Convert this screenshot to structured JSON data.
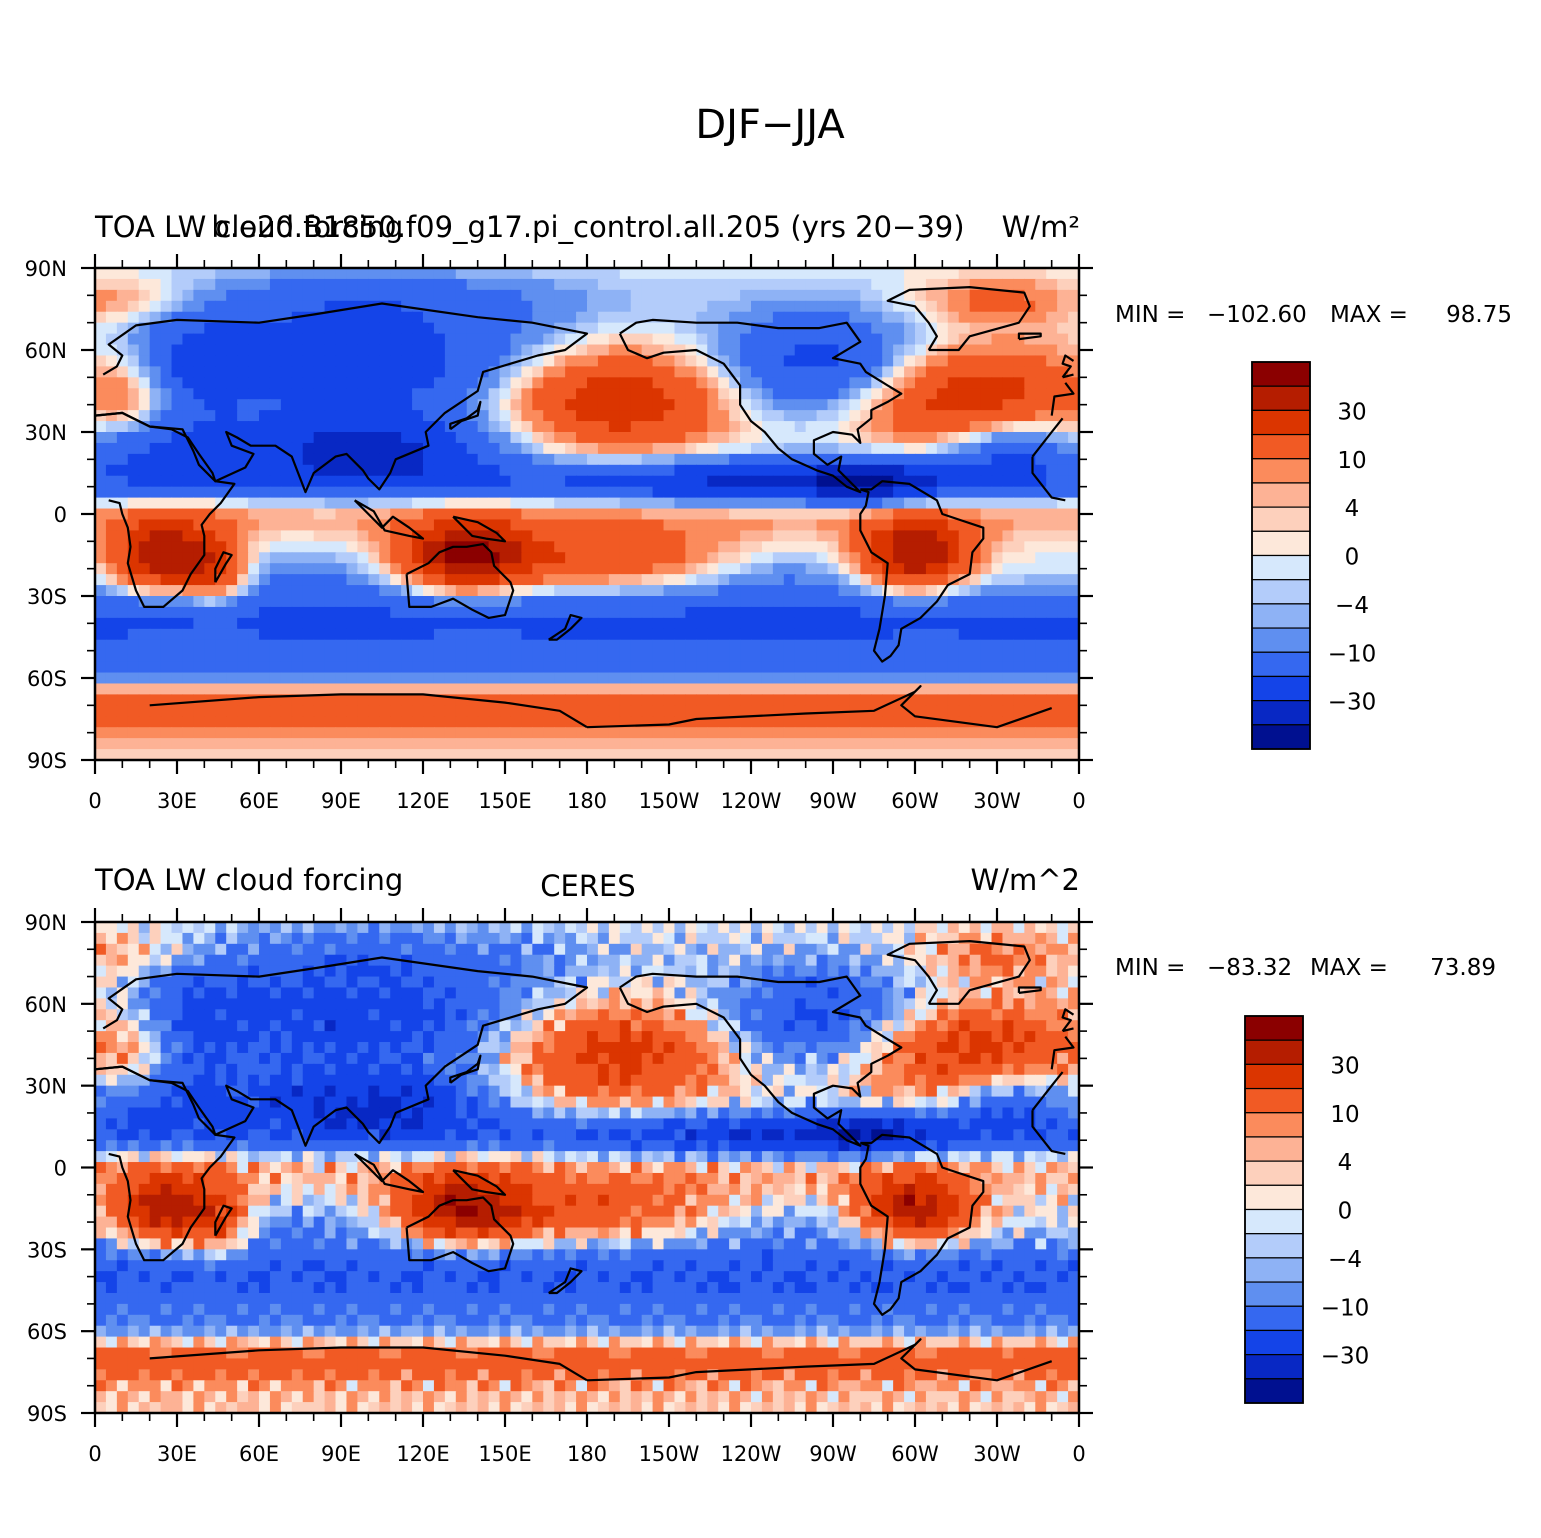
{
  "figure_title": "DJF−JJA",
  "chart_data": [
    {
      "type": "heatmap",
      "left_title": "TOA LW cloud forcing",
      "center_title": "b.e20.B1850.f09_g17.pi_control.all.205 (yrs 20−39)",
      "right_title": "W/m²",
      "stats": {
        "min_label": "MIN =",
        "min": "−102.60",
        "max_label": "MAX =",
        "max": "98.75"
      },
      "x_ticks": [
        "0",
        "30E",
        "60E",
        "90E",
        "120E",
        "150E",
        "180",
        "150W",
        "120W",
        "90W",
        "60W",
        "30W",
        "0"
      ],
      "y_ticks": [
        "90N",
        "60N",
        "30N",
        "0",
        "30S",
        "60S",
        "90S"
      ],
      "xlim": [
        0,
        360
      ],
      "ylim": [
        -90,
        90
      ],
      "contour_levels": [
        -50,
        -40,
        -30,
        -20,
        -10,
        -6,
        -4,
        -2,
        0,
        2,
        4,
        6,
        10,
        20,
        30,
        40
      ],
      "colorbar_labels": [
        "30",
        "10",
        "4",
        "0",
        "−4",
        "−10",
        "−30"
      ]
    },
    {
      "type": "heatmap",
      "left_title": "TOA LW cloud forcing",
      "center_title": "CERES",
      "right_title": "W/m^2",
      "stats": {
        "min_label": "MIN =",
        "min": "−83.32",
        "max_label": "MAX =",
        "max": "73.89"
      },
      "x_ticks": [
        "0",
        "30E",
        "60E",
        "90E",
        "120E",
        "150E",
        "180",
        "150W",
        "120W",
        "90W",
        "60W",
        "30W",
        "0"
      ],
      "y_ticks": [
        "90N",
        "60N",
        "30N",
        "0",
        "30S",
        "60S",
        "90S"
      ],
      "xlim": [
        0,
        360
      ],
      "ylim": [
        -90,
        90
      ],
      "contour_levels": [
        -50,
        -40,
        -30,
        -20,
        -10,
        -6,
        -4,
        -2,
        0,
        2,
        4,
        6,
        10,
        20,
        30,
        40
      ],
      "colorbar_labels": [
        "30",
        "10",
        "4",
        "0",
        "−4",
        "−10",
        "−30"
      ]
    }
  ],
  "colorbar_colors": [
    "#8b0000",
    "#b51d00",
    "#db3500",
    "#f15a24",
    "#fb8b5c",
    "#fdb295",
    "#fdd0bc",
    "#fde8da",
    "#d6e8fc",
    "#b3ccfa",
    "#8eb2f5",
    "#5f8ff0",
    "#3568f0",
    "#1444e8",
    "#0828c4",
    "#001090"
  ]
}
